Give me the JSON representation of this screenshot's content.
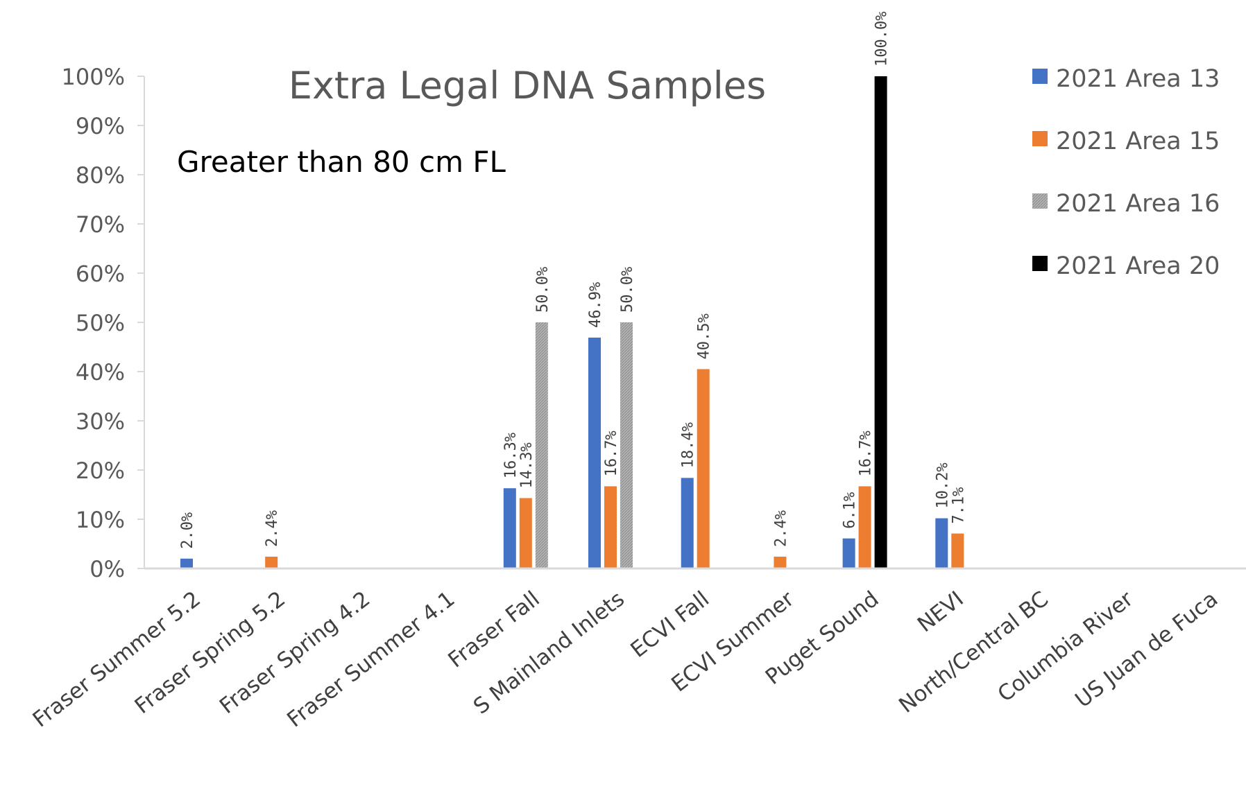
{
  "chart_data": {
    "type": "bar",
    "title": "Extra Legal DNA Samples",
    "subtitle": "Greater than 80 cm FL",
    "categories": [
      "Fraser Summer 5.2",
      "Fraser Spring 5.2",
      "Fraser Spring 4.2",
      "Fraser Summer 4.1",
      "Fraser Fall",
      "S Mainland Inlets",
      "ECVI Fall",
      "ECVI Summer",
      "Puget Sound",
      "NEVI",
      "North/Central BC",
      "Columbia River",
      "US Juan de Fuca"
    ],
    "ylim": [
      0,
      1
    ],
    "yticks": [
      "0%",
      "10%",
      "20%",
      "30%",
      "40%",
      "50%",
      "60%",
      "70%",
      "80%",
      "90%",
      "100%"
    ],
    "legend_position": "right",
    "series": [
      {
        "name": "2021 Area 13",
        "color": "#4472C4",
        "values": [
          0.02,
          0,
          0,
          0,
          0.163,
          0.469,
          0.184,
          0,
          0.061,
          0.102,
          0,
          0,
          0
        ],
        "labels": [
          "2.0%",
          null,
          null,
          null,
          "16.3%",
          "46.9%",
          "18.4%",
          null,
          "6.1%",
          "10.2%",
          null,
          null,
          null
        ]
      },
      {
        "name": "2021 Area 15",
        "color": "#ED7D31",
        "values": [
          0,
          0.024,
          0,
          0,
          0.143,
          0.167,
          0.405,
          0.024,
          0.167,
          0.071,
          0,
          0,
          0
        ],
        "labels": [
          null,
          "2.4%",
          null,
          null,
          "14.3%",
          "16.7%",
          "40.5%",
          "2.4%",
          "16.7%",
          "7.1%",
          null,
          null,
          null
        ]
      },
      {
        "name": "2021 Area 16",
        "color": "#A5A5A5",
        "values": [
          0,
          0,
          0,
          0,
          0.5,
          0.5,
          0,
          0,
          0,
          0,
          0,
          0,
          0
        ],
        "labels": [
          null,
          null,
          null,
          null,
          "50.0%",
          "50.0%",
          null,
          null,
          null,
          null,
          null,
          null,
          null
        ]
      },
      {
        "name": "2021 Area 20",
        "color": "#000000",
        "values": [
          0,
          0,
          0,
          0,
          0,
          0,
          0,
          0,
          1.0,
          0,
          0,
          0,
          0
        ],
        "labels": [
          null,
          null,
          null,
          null,
          null,
          null,
          null,
          null,
          "100.0%",
          null,
          null,
          null,
          null
        ]
      }
    ]
  }
}
